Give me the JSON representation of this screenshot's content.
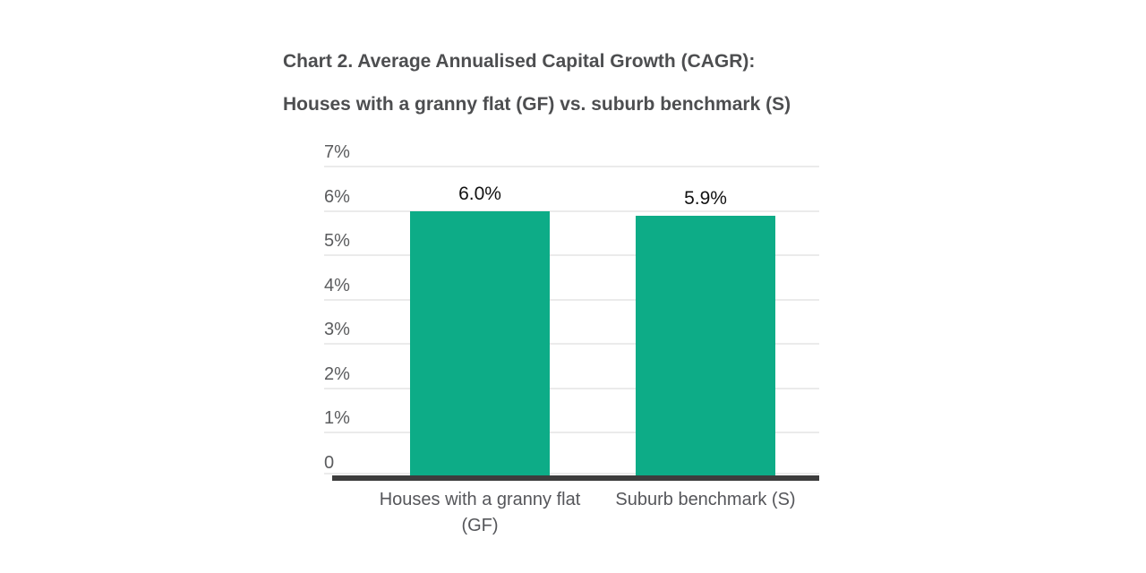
{
  "chart": {
    "title_line1": "Chart 2. Average Annualised Capital Growth (CAGR):",
    "title_line2": "Houses with a granny flat (GF) vs. suburb benchmark (S)"
  },
  "chart_data": {
    "type": "bar",
    "title": "Chart 2. Average Annualised Capital Growth (CAGR): Houses with a granny flat (GF) vs. suburb benchmark (S)",
    "categories": [
      "Houses with a granny flat (GF)",
      "Suburb benchmark (S)"
    ],
    "values": [
      6.0,
      5.9
    ],
    "value_labels": [
      "6.0%",
      "5.9%"
    ],
    "xlabel": "",
    "ylabel": "",
    "ylim": [
      0,
      7
    ],
    "ytick_values": [
      0,
      1,
      2,
      3,
      4,
      5,
      6,
      7
    ],
    "ytick_labels": [
      "0",
      "1%",
      "2%",
      "3%",
      "4%",
      "5%",
      "6%",
      "7%"
    ],
    "grid": "horizontal",
    "legend": "none",
    "colors": {
      "bar": "#0dac87",
      "axis": "#3d3d3d",
      "gridline": "#ebebeb",
      "title_text": "#4d4e50",
      "tick_text": "#5b5c5e",
      "category_text": "#55565a",
      "value_text": "#111111",
      "background": "#ffffff"
    }
  }
}
